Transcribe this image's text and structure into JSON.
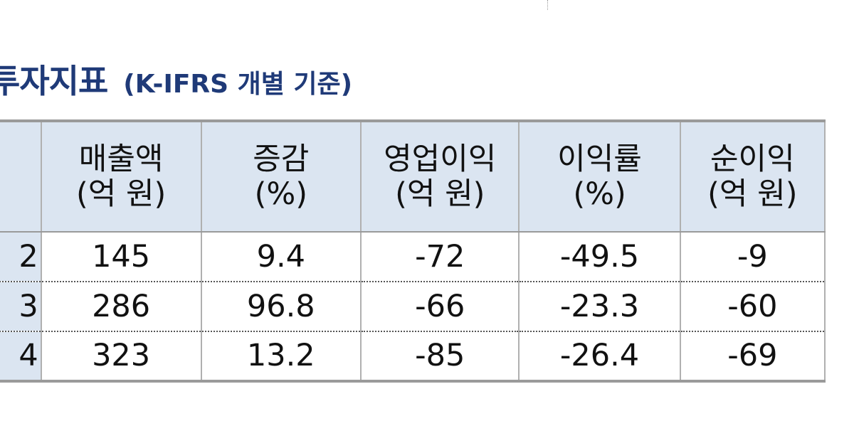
{
  "title": {
    "main": "투자지표",
    "sub": "(K-IFRS 개별 기준)"
  },
  "table": {
    "headers": [
      {
        "line1": "매출액",
        "line2": "(억 원)"
      },
      {
        "line1": "증감",
        "line2": "(%)"
      },
      {
        "line1": "영업이익",
        "line2": "(억 원)"
      },
      {
        "line1": "이익률",
        "line2": "(%)"
      },
      {
        "line1": "순이익",
        "line2": "(억 원)"
      }
    ],
    "rows": [
      {
        "label": "2",
        "values": [
          "145",
          "9.4",
          "-72",
          "-49.5",
          "-9"
        ]
      },
      {
        "label": "3",
        "values": [
          "286",
          "96.8",
          "-66",
          "-23.3",
          "-60"
        ]
      },
      {
        "label": "4",
        "values": [
          "323",
          "13.2",
          "-85",
          "-26.4",
          "-69"
        ]
      }
    ]
  },
  "colors": {
    "title": "#1f3a78",
    "header_fill": "#dbe5f1"
  }
}
